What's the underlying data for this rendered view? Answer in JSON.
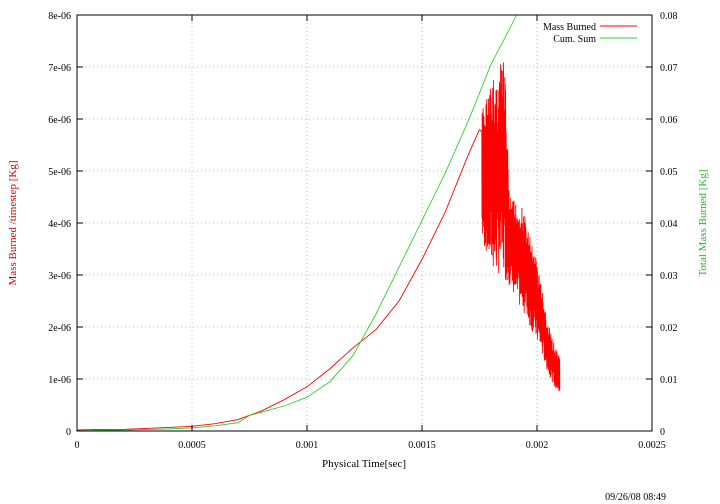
{
  "timestamp": "09/26/08 08:49",
  "colors": {
    "mass_burned": "#ff0000",
    "cum_sum": "#33cc33",
    "grid": "#b8b8b8",
    "frame": "#000000"
  },
  "chart_data": {
    "type": "line",
    "title": "",
    "xlabel": "Physical Time[sec]",
    "ylabel": "Mass Burned /timestep [Kg]",
    "y2label": "Total Mass Burned [Kg]",
    "xlim": [
      0,
      0.0025
    ],
    "ylim": [
      0,
      8e-06
    ],
    "y2lim": [
      0,
      0.08
    ],
    "xticks": [
      "0",
      "0.0005",
      "0.001",
      "0.0015",
      "0.002",
      "0.0025"
    ],
    "yticks": [
      "0",
      "1e-06",
      "2e-06",
      "3e-06",
      "4e-06",
      "5e-06",
      "6e-06",
      "7e-06",
      "8e-06"
    ],
    "y2ticks": [
      "0",
      "0.01",
      "0.02",
      "0.03",
      "0.04",
      "0.05",
      "0.06",
      "0.07",
      "0.08"
    ],
    "grid": true,
    "legend_position": "top-right",
    "series": [
      {
        "name": "Mass Burned",
        "axis": "left",
        "x": [
          0,
          0.0001,
          0.0002,
          0.0003,
          0.0004,
          0.0005,
          0.0006,
          0.0007,
          0.0008,
          0.0009,
          0.001,
          0.0011,
          0.0012,
          0.0013,
          0.0014,
          0.0015,
          0.0016,
          0.0017,
          0.00175
        ],
        "values": [
          2e-08,
          3e-08,
          3e-08,
          5e-08,
          7e-08,
          9e-08,
          1.4e-07,
          2.2e-07,
          3.8e-07,
          6e-07,
          8.5e-07,
          1.2e-06,
          1.6e-06,
          1.95e-06,
          2.5e-06,
          3.3e-06,
          4.2e-06,
          5.3e-06,
          5.8e-06
        ],
        "noisy_segment": {
          "x": [
            0.00176,
            0.00178,
            0.0018,
            0.00182,
            0.00184,
            0.00186,
            0.00188,
            0.0019,
            0.00192,
            0.00194,
            0.00196,
            0.00198,
            0.002,
            0.00202,
            0.00204,
            0.00206,
            0.00208,
            0.0021
          ],
          "low": [
            3.6e-06,
            3.4e-06,
            3.1e-06,
            3e-06,
            3e-06,
            2.9e-06,
            2.8e-06,
            2.6e-06,
            2.4e-06,
            2.3e-06,
            2.1e-06,
            1.9e-06,
            1.7e-06,
            1.5e-06,
            1.2e-06,
            1e-06,
            8e-07,
            7e-07
          ],
          "high": [
            6.2e-06,
            6.5e-06,
            6.7e-06,
            6.9e-06,
            7.05e-06,
            7.15e-06,
            4.5e-06,
            4.45e-06,
            4.4e-06,
            4.3e-06,
            3.9e-06,
            3.6e-06,
            3.3e-06,
            2.8e-06,
            2.2e-06,
            1.9e-06,
            1.6e-06,
            1.4e-06
          ]
        }
      },
      {
        "name": "Cum. Sum",
        "axis": "right",
        "x": [
          0,
          0.0002,
          0.0004,
          0.0005,
          0.0006,
          0.0007,
          0.00075,
          0.0008,
          0.0009,
          0.001,
          0.0011,
          0.0012,
          0.0013,
          0.0014,
          0.0015,
          0.0016,
          0.0017,
          0.0018,
          0.0019,
          0.002,
          0.00205
        ],
        "values": [
          0,
          0.0002,
          0.0004,
          0.0006,
          0.001,
          0.0016,
          0.003,
          0.0036,
          0.0048,
          0.0065,
          0.0095,
          0.0145,
          0.0225,
          0.0315,
          0.0405,
          0.0495,
          0.0595,
          0.0705,
          0.079,
          0.0875,
          0.08
        ]
      }
    ]
  }
}
